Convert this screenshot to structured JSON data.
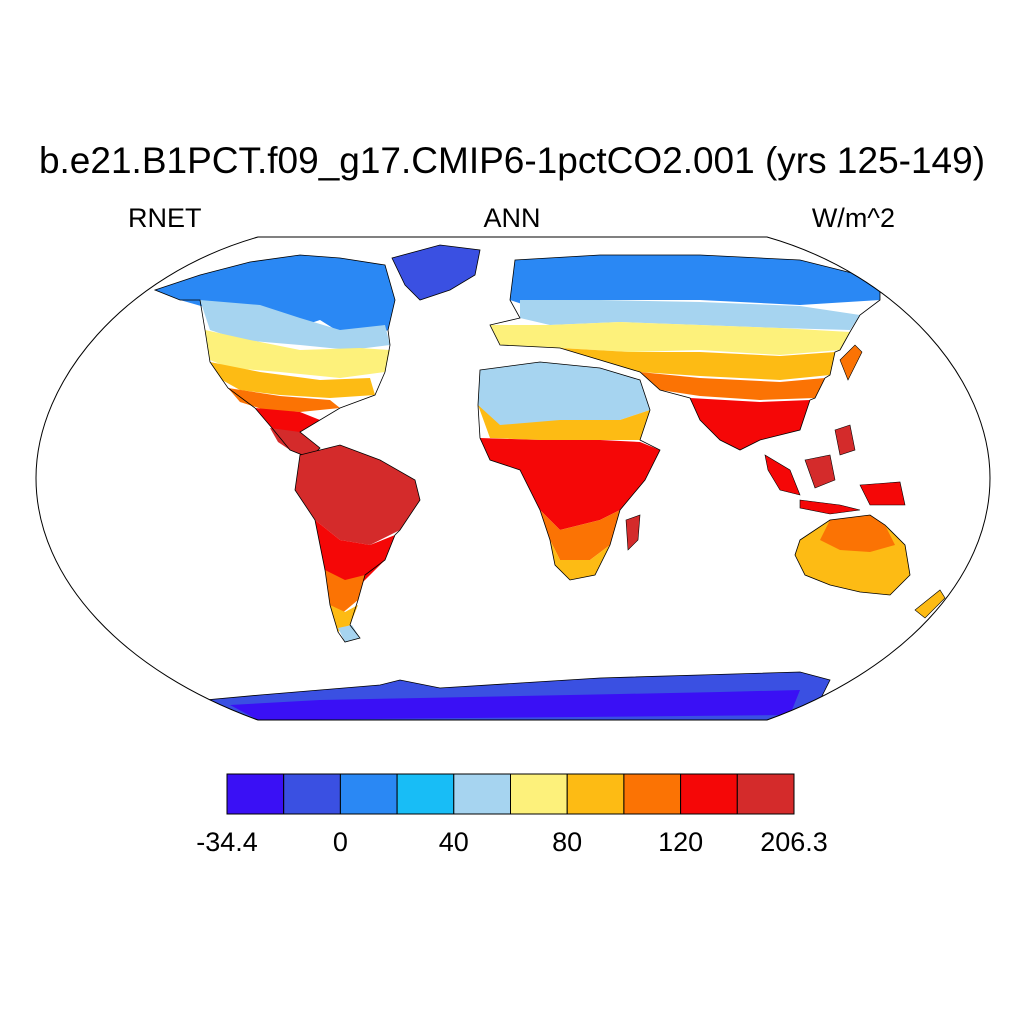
{
  "title": "b.e21.B1PCT.f09_g17.CMIP6-1pctCO2.001 (yrs 125-149)",
  "left_label": "RNET",
  "center_label": "ANN",
  "right_label": "W/m^2",
  "colorbar": {
    "colors": [
      "#3a10f5",
      "#3a50e2",
      "#2a88f4",
      "#18bdf6",
      "#a6d4f0",
      "#fdf17b",
      "#fdbb14",
      "#fb7304",
      "#f50707",
      "#d42b2b"
    ],
    "labels": [
      "-34.4",
      "0",
      "40",
      "80",
      "120",
      "206.3"
    ]
  },
  "colors": {
    "land_no_data_ocean": "#ffffff",
    "coastline": "#000000"
  }
}
